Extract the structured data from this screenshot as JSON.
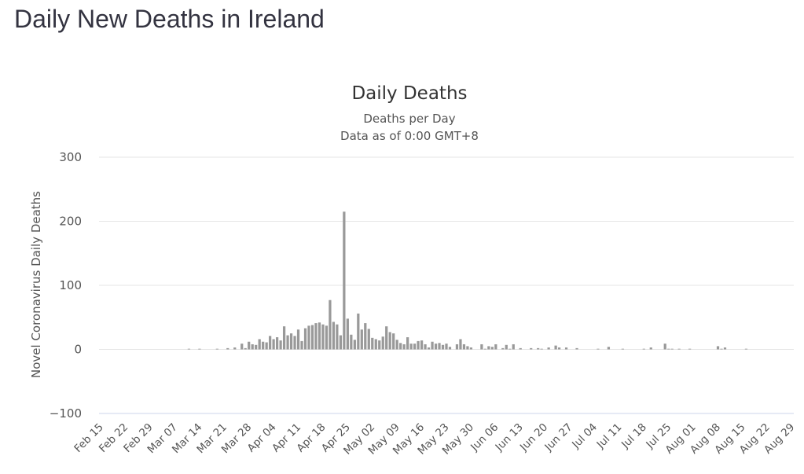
{
  "page": {
    "heading": "Daily New Deaths in Ireland"
  },
  "chart_data": {
    "type": "bar",
    "title": "Daily Deaths",
    "subtitle_lines": [
      "Deaths per Day",
      "Data as of 0:00 GMT+8"
    ],
    "ylabel": "Novel Coronavirus Daily Deaths",
    "xlabel": "",
    "ylim": [
      -100,
      300
    ],
    "yticks": [
      300,
      200,
      100,
      0,
      -100
    ],
    "ytick_labels": [
      "300",
      "200",
      "100",
      "0",
      "−100"
    ],
    "start_date": "2020-02-15",
    "xtick_labels": [
      "Feb 15",
      "Feb 22",
      "Feb 29",
      "Mar 07",
      "Mar 14",
      "Mar 21",
      "Mar 28",
      "Apr 04",
      "Apr 11",
      "Apr 18",
      "Apr 25",
      "May 02",
      "May 09",
      "May 16",
      "May 23",
      "May 30",
      "Jun 06",
      "Jun 13",
      "Jun 20",
      "Jun 27",
      "Jul 04",
      "Jul 11",
      "Jul 18",
      "Jul 25",
      "Aug 01",
      "Aug 08",
      "Aug 15",
      "Aug 22",
      "Aug 29"
    ],
    "bar_color": "#999999",
    "grid": true,
    "series": [
      {
        "name": "Daily Deaths",
        "values": [
          0,
          0,
          0,
          0,
          0,
          0,
          0,
          0,
          0,
          0,
          0,
          0,
          0,
          0,
          0,
          0,
          0,
          0,
          0,
          0,
          0,
          0,
          0,
          0,
          0,
          1,
          0,
          0,
          1,
          0,
          0,
          0,
          0,
          1,
          0,
          0,
          2,
          0,
          3,
          0,
          9,
          2,
          12,
          8,
          7,
          16,
          12,
          11,
          21,
          16,
          19,
          14,
          36,
          22,
          25,
          21,
          31,
          13,
          33,
          37,
          38,
          41,
          42,
          39,
          37,
          77,
          43,
          39,
          22,
          215,
          48,
          23,
          15,
          56,
          31,
          41,
          32,
          18,
          16,
          14,
          20,
          36,
          27,
          25,
          15,
          10,
          8,
          19,
          9,
          9,
          13,
          14,
          8,
          3,
          12,
          9,
          10,
          7,
          9,
          4,
          0,
          8,
          16,
          8,
          5,
          3,
          0,
          0,
          8,
          1,
          5,
          4,
          8,
          0,
          2,
          7,
          1,
          8,
          0,
          2,
          0,
          0,
          2,
          0,
          2,
          1,
          0,
          3,
          0,
          6,
          3,
          0,
          3,
          0,
          0,
          2,
          0,
          0,
          0,
          0,
          0,
          1,
          0,
          0,
          4,
          0,
          0,
          0,
          1,
          0,
          0,
          0,
          0,
          0,
          1,
          0,
          3,
          0,
          0,
          0,
          9,
          1,
          1,
          0,
          1,
          0,
          0,
          1,
          0,
          0,
          0,
          0,
          0,
          0,
          0,
          5,
          1,
          3,
          0,
          0,
          0,
          0,
          0,
          1,
          0,
          0,
          0,
          0,
          0,
          0,
          0,
          0,
          0,
          0,
          0,
          0,
          0,
          0,
          0
        ]
      }
    ]
  }
}
